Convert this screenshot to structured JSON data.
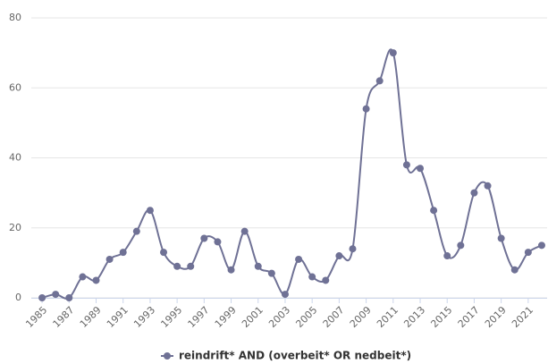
{
  "chart_data": {
    "type": "line",
    "x": [
      1985,
      1986,
      1987,
      1988,
      1989,
      1990,
      1991,
      1992,
      1993,
      1994,
      1995,
      1996,
      1997,
      1998,
      1999,
      2000,
      2001,
      2002,
      2003,
      2004,
      2005,
      2006,
      2007,
      2008,
      2009,
      2010,
      2011,
      2012,
      2013,
      2014,
      2015,
      2016,
      2017,
      2018,
      2019,
      2020,
      2021,
      2022
    ],
    "series": [
      {
        "name": "reindrift* AND (overbeit* OR nedbeit*)",
        "color": "#6f7195",
        "values": [
          0,
          1,
          0,
          6,
          5,
          11,
          13,
          19,
          25,
          13,
          9,
          9,
          17,
          16,
          8,
          19,
          9,
          7,
          1,
          11,
          6,
          5,
          12,
          14,
          54,
          62,
          70,
          38,
          37,
          25,
          12,
          15,
          30,
          32,
          17,
          8,
          13,
          15
        ]
      }
    ],
    "xlim": [
      1984.2,
      2022.4
    ],
    "xticks": [
      1985,
      1987,
      1989,
      1991,
      1993,
      1995,
      1997,
      1999,
      2001,
      2003,
      2005,
      2007,
      2009,
      2011,
      2013,
      2015,
      2017,
      2019,
      2021
    ],
    "ylim": [
      0,
      80
    ],
    "yticks": [
      0,
      20,
      40,
      60,
      80
    ],
    "grid": true,
    "legend": "bottom"
  }
}
